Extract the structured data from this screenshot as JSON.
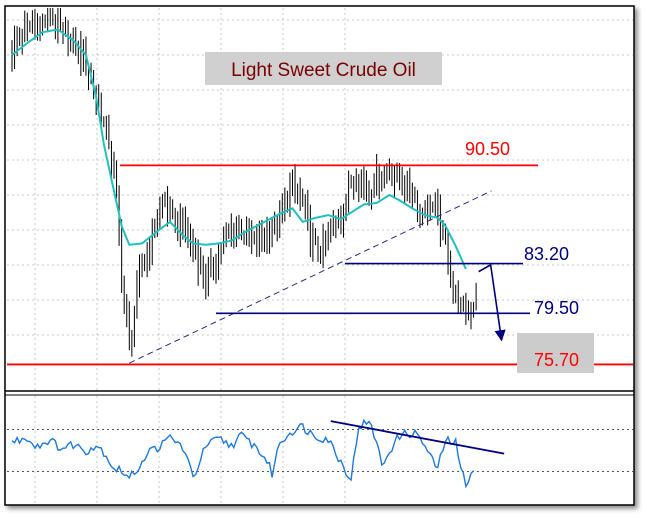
{
  "chart_data": {
    "type": "candlestick",
    "title": "Light Sweet Crude Oil",
    "price_axis": {
      "ylim": [
        73.8,
        102.2
      ]
    },
    "grid": true,
    "levels": [
      {
        "label": "90.50",
        "value": 90.5,
        "color": "#ff0000",
        "kind": "resistance"
      },
      {
        "label": "83.20",
        "value": 83.2,
        "color": "#000080",
        "kind": "support"
      },
      {
        "label": "79.50",
        "value": 79.5,
        "color": "#000080",
        "kind": "support"
      },
      {
        "label": "75.70",
        "value": 75.7,
        "color": "#ff0000",
        "kind": "target"
      }
    ],
    "price_series": [
      {
        "name": "price",
        "color": "#000000",
        "bar_index": [
          0,
          2,
          5,
          10,
          15,
          19,
          24,
          29,
          33,
          38,
          41,
          43,
          46,
          50,
          53,
          57,
          60,
          62,
          67,
          71,
          76,
          81,
          86,
          88,
          91,
          95,
          100,
          105,
          108,
          110,
          114,
          117,
          120,
          124,
          129,
          133,
          136,
          140,
          143,
          148,
          152,
          157,
          160,
          164,
          167,
          170,
          173,
          176,
          179,
          182
        ],
        "values": [
          99.0,
          99.8,
          100.5,
          101.0,
          101.5,
          100.5,
          99.6,
          98.0,
          95.6,
          92.3,
          88.0,
          82.3,
          77.0,
          82.5,
          83.8,
          87.0,
          88.0,
          86.6,
          85.9,
          84.4,
          81.9,
          84.0,
          85.7,
          86.2,
          85.4,
          84.7,
          85.6,
          86.3,
          88.4,
          89.0,
          87.8,
          85.0,
          84.1,
          85.1,
          86.7,
          89.2,
          89.6,
          88.6,
          89.6,
          90.0,
          89.6,
          88.7,
          87.0,
          87.8,
          86.6,
          84.6,
          81.3,
          79.8,
          79.3,
          80.9
        ]
      },
      {
        "name": "moving-average",
        "color": "#20c0c0",
        "bar_index": [
          0,
          6,
          12,
          18,
          24,
          29,
          33,
          36,
          40,
          43,
          46,
          51,
          57,
          62,
          67,
          71,
          76,
          81,
          86,
          91,
          95,
          100,
          105,
          110,
          114,
          119,
          124,
          129,
          133,
          138,
          143,
          148,
          152,
          157,
          162,
          167,
          170,
          174,
          178
        ],
        "values": [
          98.7,
          99.6,
          100.4,
          100.6,
          99.8,
          98.7,
          95.6,
          92.1,
          88.6,
          86.0,
          84.6,
          84.7,
          85.6,
          86.3,
          85.3,
          84.7,
          84.6,
          84.7,
          84.9,
          85.5,
          85.9,
          86.4,
          86.9,
          87.3,
          86.3,
          86.6,
          86.8,
          86.5,
          87.0,
          87.6,
          87.7,
          88.3,
          87.9,
          87.3,
          86.8,
          86.6,
          86.0,
          84.5,
          82.8
        ]
      }
    ],
    "trendlines": [
      {
        "name": "rising-trendline",
        "style": "dashed",
        "from": {
          "bar_index": 46,
          "value": 75.8
        },
        "to": {
          "bar_index": 188,
          "value": 88.6
        }
      }
    ],
    "projection": {
      "from": {
        "bar_index": 183,
        "value": 82.6
      },
      "to": {
        "bar_index": 192,
        "value": 77.5
      }
    },
    "indicator": {
      "name": "oscillator",
      "color": "#1e78dc",
      "ylim": [
        0,
        100
      ],
      "guide_levels": [
        70,
        30
      ],
      "bar_index": [
        0,
        3,
        6,
        8,
        11,
        14,
        17,
        20,
        24,
        29,
        33,
        36,
        40,
        43,
        46,
        51,
        53,
        57,
        60,
        62,
        67,
        69,
        71,
        76,
        81,
        86,
        90,
        95,
        100,
        102,
        105,
        110,
        114,
        117,
        119,
        124,
        129,
        133,
        136,
        140,
        143,
        145,
        148,
        152,
        157,
        160,
        164,
        167,
        170,
        174,
        176,
        178,
        181
      ],
      "values": [
        58,
        60,
        63,
        56,
        55,
        60,
        56,
        52,
        56,
        50,
        55,
        49,
        33,
        31,
        23,
        39,
        48,
        53,
        57,
        63,
        53,
        39,
        24,
        54,
        61,
        55,
        64,
        55,
        40,
        28,
        58,
        69,
        73,
        67,
        64,
        61,
        39,
        23,
        74,
        76,
        60,
        34,
        50,
        64,
        67,
        63,
        44,
        33,
        60,
        57,
        32,
        19,
        34
      ]
    },
    "indicator_trendline": {
      "from": {
        "bar_index": 125,
        "value": 78
      },
      "to": {
        "bar_index": 193,
        "value": 47
      }
    }
  }
}
